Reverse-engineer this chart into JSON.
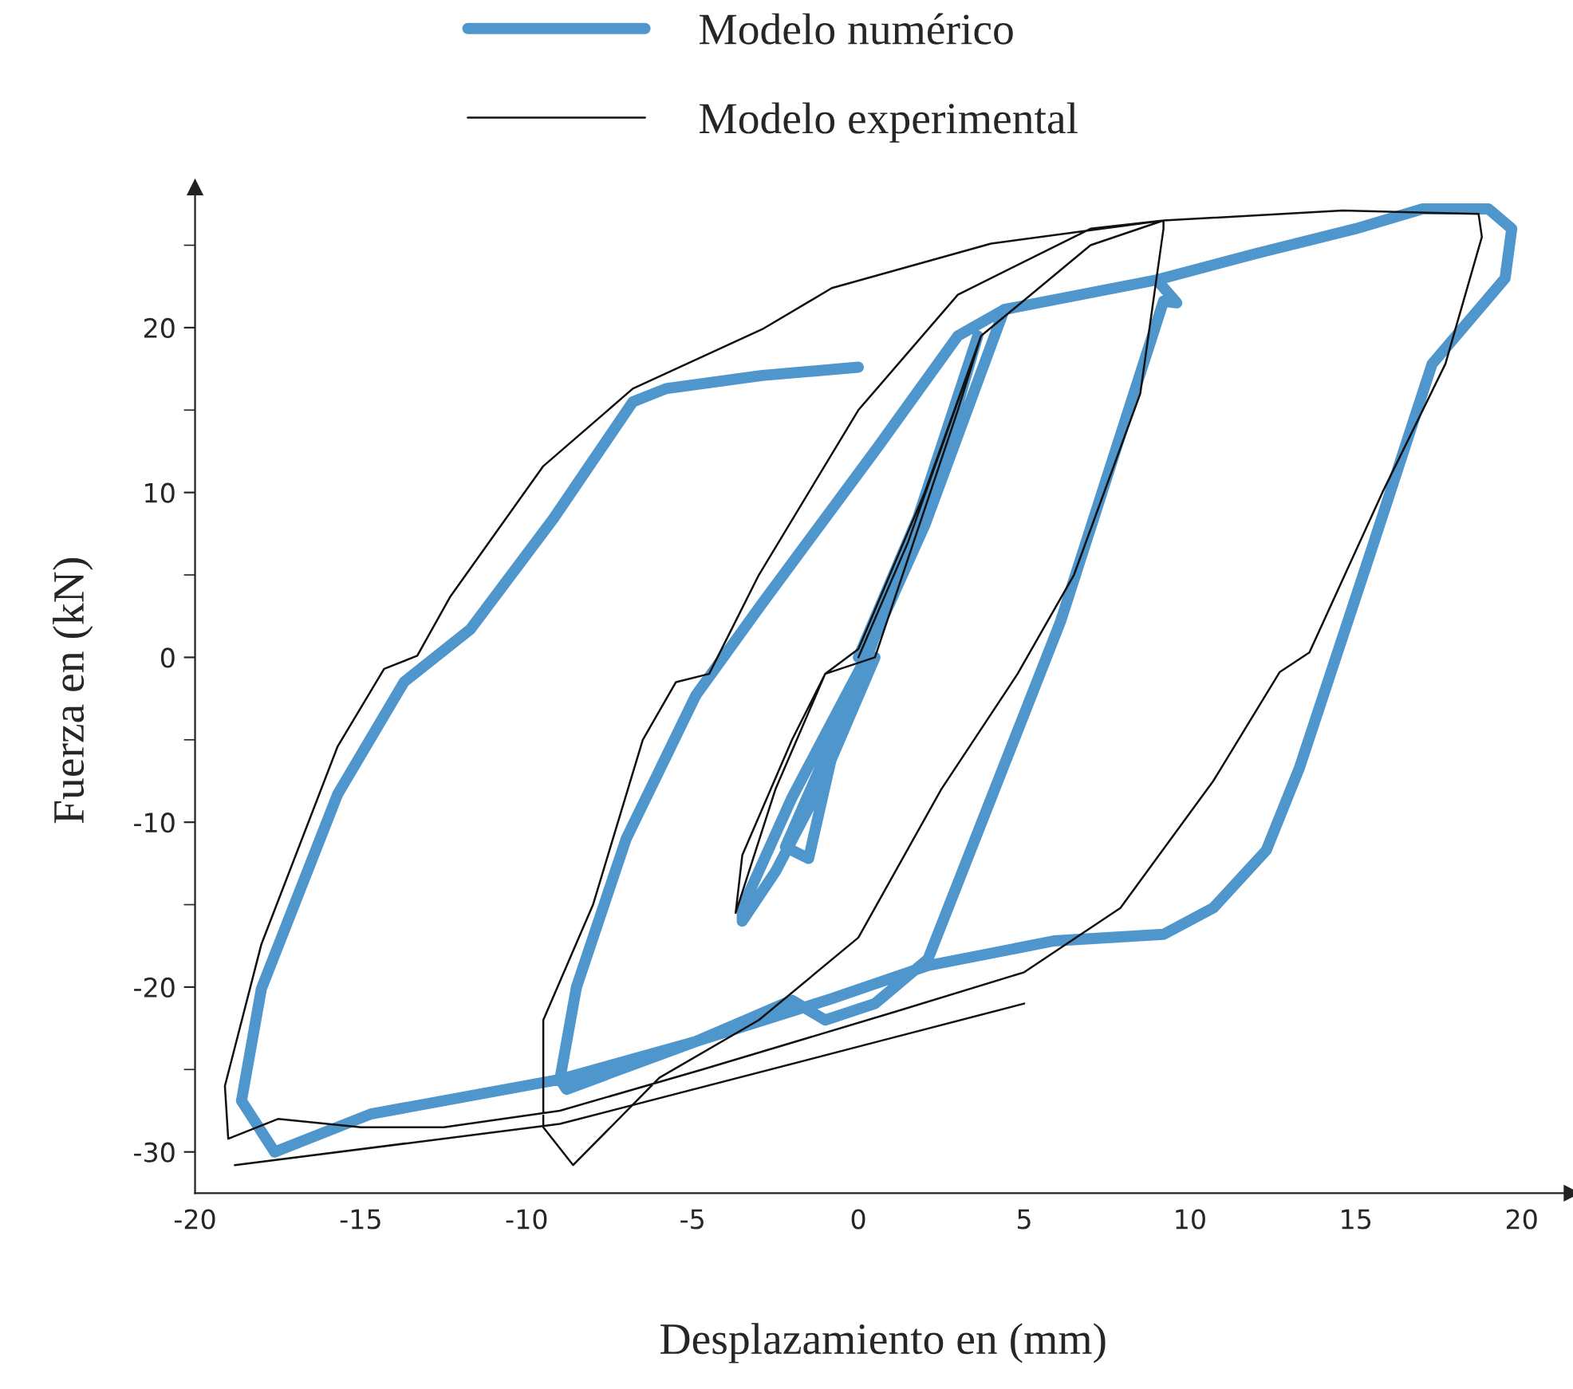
{
  "chart_data": {
    "type": "line",
    "xlabel": "Desplazamiento en (mm)",
    "ylabel": "Fuerza en (kN)",
    "xlim": [
      -20,
      21.5
    ],
    "ylim": [
      -32.5,
      28.5
    ],
    "xticks": [
      -20,
      -15,
      -10,
      -5,
      0,
      5,
      10,
      15,
      20
    ],
    "yticks": [
      -30,
      -20,
      -10,
      0,
      10,
      20
    ],
    "grid": false,
    "legend": "top",
    "marker": "none",
    "line_style": "solid",
    "series": [
      {
        "name": "Modelo numérico",
        "color": "#4f96cd",
        "x": [
          0,
          1.8,
          3.6,
          2.8,
          0.8,
          -0.8,
          -1.5,
          -2.2,
          -1.0,
          0.5,
          -1.2,
          -2.5,
          -3.5,
          -3.5,
          -2.0,
          0.1,
          2.0,
          4.4,
          9.0,
          9.6,
          9.2,
          6.1,
          2.1,
          0.5,
          -1.0,
          -2.0,
          -4.9,
          -8.8,
          -9.0,
          -8.5,
          -7.0,
          -4.9,
          -3.0,
          0.6,
          3.0,
          4.4,
          9.0,
          12.0,
          15.0,
          17.0,
          19.0,
          19.7,
          19.5,
          17.3,
          15.4,
          13.3,
          12.3,
          10.7,
          9.2,
          5.9,
          2.1,
          -0.8,
          -4.9,
          -9.0,
          -14.7,
          -17.6,
          -18.6,
          -18.0,
          -15.7,
          -13.7,
          -11.7,
          -9.2,
          -6.8,
          -5.8,
          -2.9,
          0.0
        ],
        "values": [
          0,
          8.5,
          19.5,
          14,
          3,
          -6,
          -12.2,
          -11.5,
          -6,
          0,
          -8,
          -13,
          -16,
          -15.2,
          -8.5,
          -0.5,
          8,
          21.1,
          22.9,
          21.5,
          21.6,
          2.2,
          -18.3,
          -21,
          -22,
          -20.8,
          -23.3,
          -26.2,
          -25.6,
          -20,
          -11,
          -2.3,
          3,
          12.8,
          19.5,
          21.1,
          22.9,
          24.5,
          26,
          27.2,
          27.2,
          26,
          23,
          17.8,
          6.1,
          -6.7,
          -11.7,
          -15.2,
          -16.8,
          -17.2,
          -18.7,
          -20.7,
          -23.3,
          -25.6,
          -27.7,
          -30,
          -26.9,
          -20.1,
          -8.3,
          -1.5,
          1.7,
          8.4,
          15.5,
          16.3,
          17.1,
          17.6
        ]
      },
      {
        "name": "Modelo experimental",
        "color": "#111111",
        "x": [
          0,
          1.5,
          3.7,
          3.0,
          0.5,
          -1.0,
          -2.5,
          -3.7,
          -3.5,
          -2.0,
          -1.0,
          0.0,
          2.0,
          3.7,
          7.0,
          9.2,
          9.2,
          8.5,
          6.5,
          4.8,
          2.5,
          0.0,
          -3.0,
          -6.0,
          -8.6,
          -9.5,
          -9.5,
          -8.0,
          -6.5,
          -5.5,
          -4.5,
          -3.0,
          0.0,
          3.0,
          7.0,
          9.2,
          14.6,
          18.7,
          18.8,
          17.7,
          15.8,
          13.6,
          12.7,
          10.7,
          7.9,
          5.0,
          1.1,
          -4.7,
          -9.0,
          -12.5,
          -15.0,
          -17.5,
          -19.0,
          -19.1,
          -18.0,
          -15.7,
          -14.3,
          -13.3,
          -12.3,
          -9.5,
          -6.8,
          -2.9,
          -0.8,
          4.0,
          9.2
        ],
        "values": [
          0,
          7,
          19.5,
          15,
          0,
          -1,
          -8,
          -15.5,
          -12,
          -5,
          -1,
          0.5,
          10,
          19.5,
          25,
          26.5,
          26,
          16,
          5,
          -1,
          -8,
          -17,
          -22,
          -25.5,
          -30.8,
          -28.5,
          -22,
          -15,
          -5,
          -1.5,
          -1,
          5,
          15,
          22,
          26,
          26.5,
          27.1,
          26.9,
          25.5,
          17.8,
          10,
          0.3,
          -0.9,
          -7.5,
          -15.2,
          -19.1,
          -21.5,
          -25,
          -27.5,
          -28.5,
          -28.5,
          -28,
          -29.2,
          -26,
          -17.4,
          -5.4,
          -0.7,
          0.1,
          3.7,
          11.6,
          16.3,
          19.9,
          22.4,
          25.1,
          26.5
        ]
      },
      {
        "color": "#111111",
        "x": [
          -18.8,
          -9.0,
          0.6,
          5.0
        ],
        "values": [
          -30.8,
          -28.3,
          -23.3,
          -21
        ]
      }
    ]
  }
}
